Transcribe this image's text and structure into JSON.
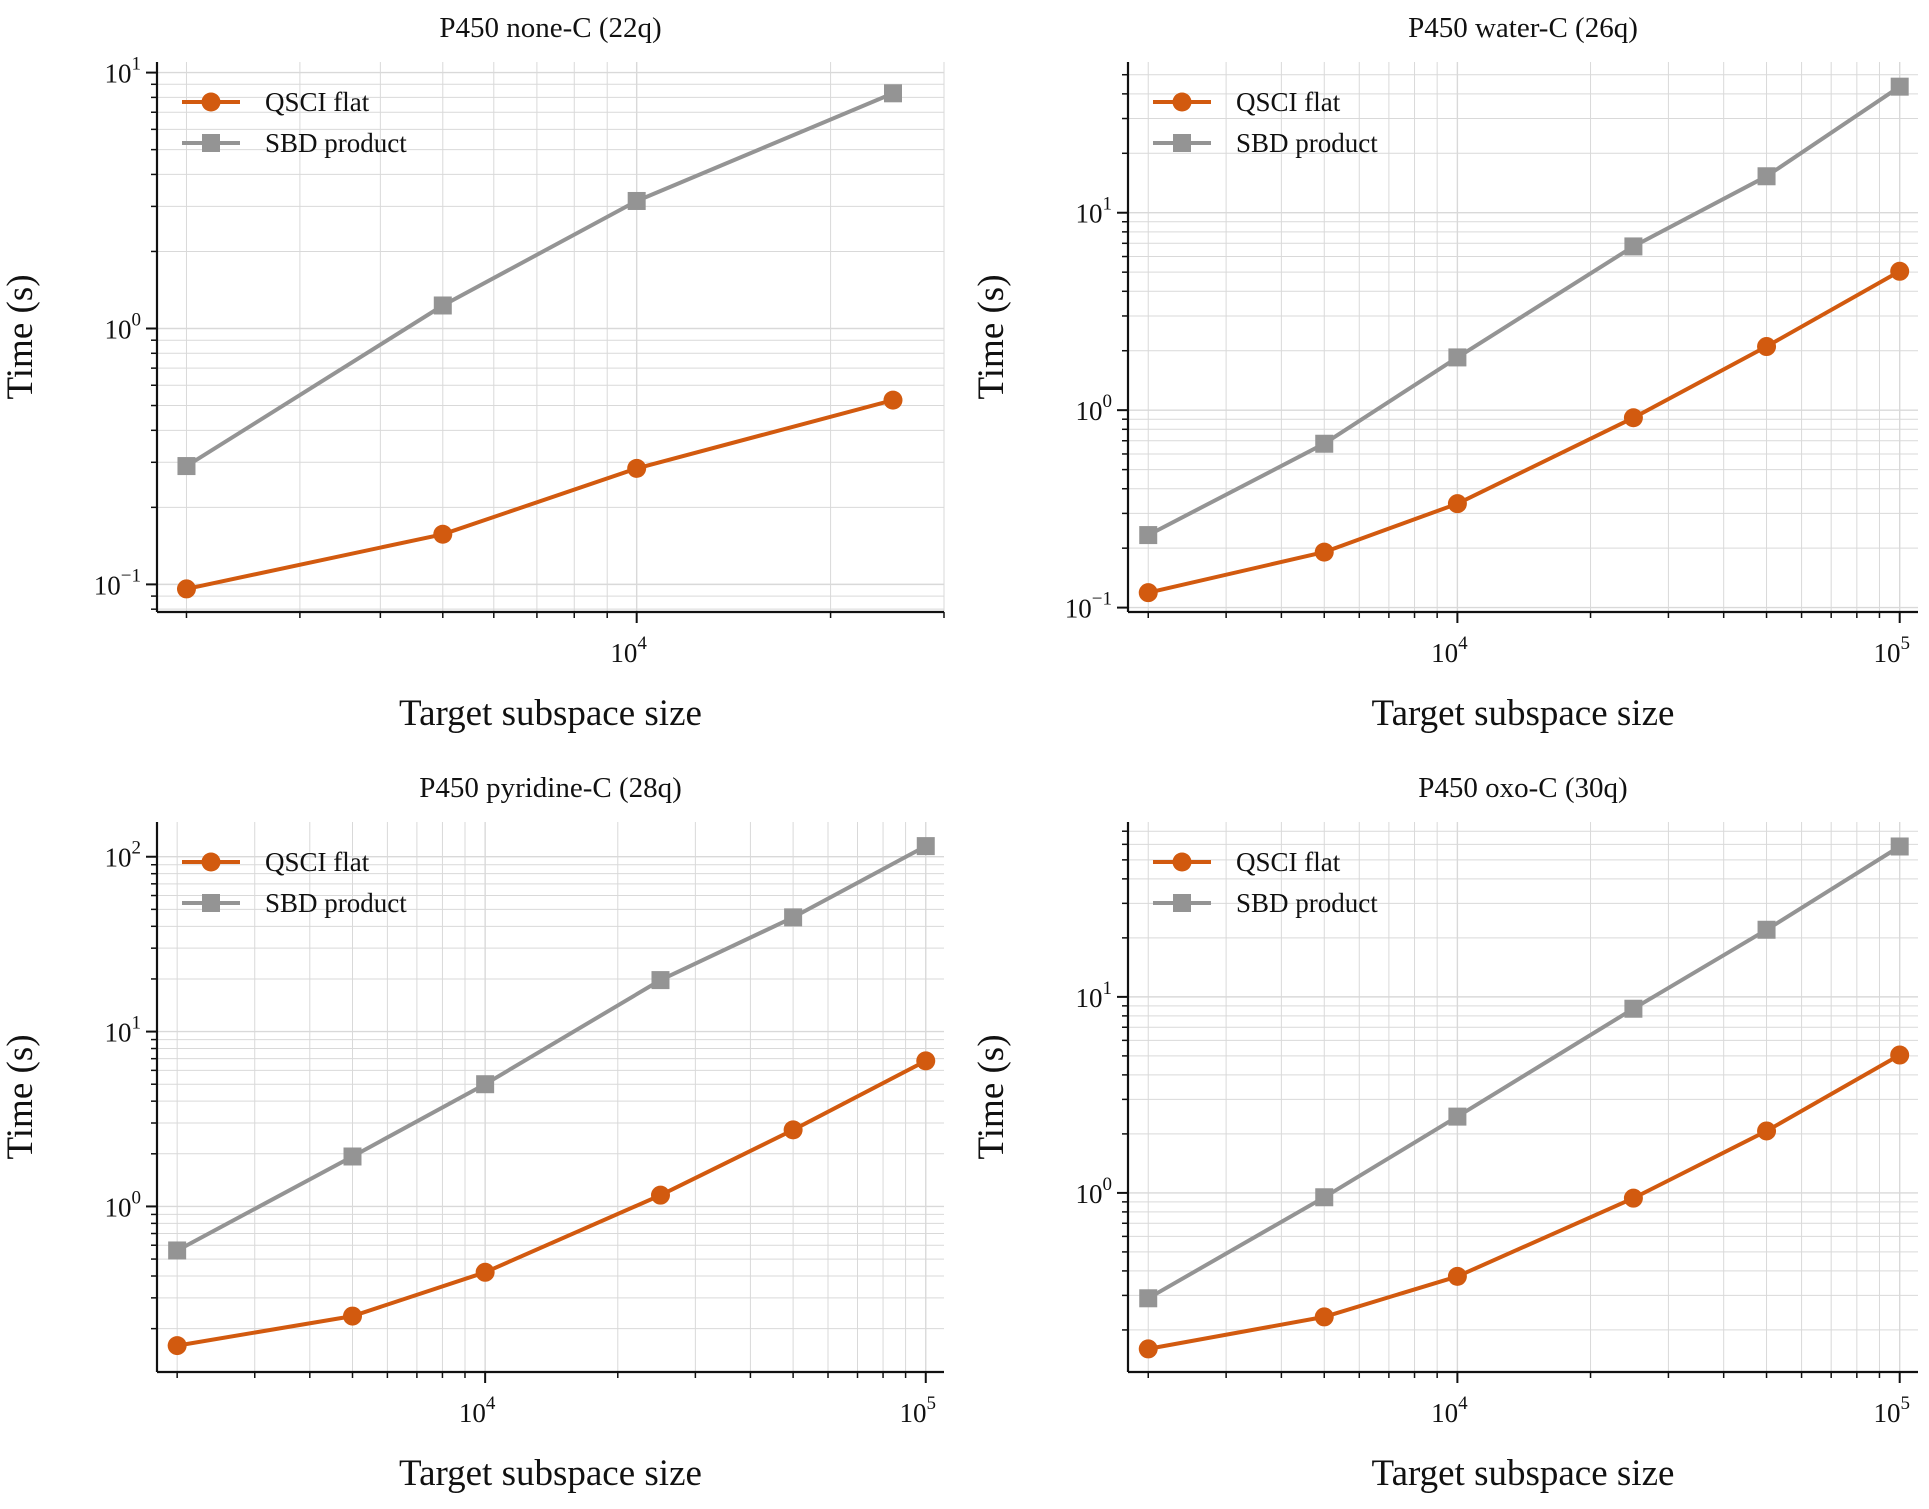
{
  "figure": {
    "colors": {
      "qsci": "#D25A0F",
      "sbd": "#949494",
      "grid": "#D9D9D9",
      "axis": "#111111"
    }
  },
  "chart_data": [
    {
      "type": "line",
      "title": "P450 none-C (22q)",
      "xlabel": "Target subspace size",
      "ylabel": "Time (s)",
      "xscale": "log",
      "yscale": "log",
      "xlim": [
        1800,
        30000
      ],
      "ylim": [
        0.078,
        11
      ],
      "grid": true,
      "legend": "upper-left",
      "xticks": [
        {
          "value": 10000,
          "base": "10",
          "exp": "4"
        }
      ],
      "yticks": [
        {
          "value": 0.1,
          "base": "10",
          "exp": "−1"
        },
        {
          "value": 1,
          "base": "10",
          "exp": "0"
        },
        {
          "value": 10,
          "base": "10",
          "exp": "1"
        }
      ],
      "series": [
        {
          "name": "QSCI flat",
          "marker": "circle",
          "color": "#D25A0F",
          "x": [
            2000,
            5000,
            10000,
            25000
          ],
          "y": [
            0.096,
            0.157,
            0.284,
            0.525
          ]
        },
        {
          "name": "SBD product",
          "marker": "square",
          "color": "#949494",
          "x": [
            2000,
            5000,
            10000,
            25000
          ],
          "y": [
            0.29,
            1.23,
            3.15,
            8.3
          ]
        }
      ]
    },
    {
      "type": "line",
      "title": "P450 water-C (26q)",
      "xlabel": "Target subspace size",
      "ylabel": "Time (s)",
      "xscale": "log",
      "yscale": "log",
      "xlim": [
        1800,
        110000
      ],
      "ylim": [
        0.095,
        58
      ],
      "grid": true,
      "legend": "upper-left",
      "xticks": [
        {
          "value": 10000,
          "base": "10",
          "exp": "4"
        },
        {
          "value": 100000,
          "base": "10",
          "exp": "5"
        }
      ],
      "yticks": [
        {
          "value": 0.1,
          "base": "10",
          "exp": "−1"
        },
        {
          "value": 1,
          "base": "10",
          "exp": "0"
        },
        {
          "value": 10,
          "base": "10",
          "exp": "1"
        }
      ],
      "series": [
        {
          "name": "QSCI flat",
          "marker": "circle",
          "color": "#D25A0F",
          "x": [
            2000,
            5000,
            10000,
            25000,
            50000,
            100000
          ],
          "y": [
            0.119,
            0.191,
            0.336,
            0.915,
            2.1,
            5.05
          ]
        },
        {
          "name": "SBD product",
          "marker": "square",
          "color": "#949494",
          "x": [
            2000,
            5000,
            10000,
            25000,
            50000,
            100000
          ],
          "y": [
            0.233,
            0.676,
            1.85,
            6.75,
            15.3,
            43.5
          ]
        }
      ]
    },
    {
      "type": "line",
      "title": "P450 pyridine-C (28q)",
      "xlabel": "Target subspace size",
      "ylabel": "Time (s)",
      "xscale": "log",
      "yscale": "log",
      "xlim": [
        1800,
        110000
      ],
      "ylim": [
        0.113,
        158
      ],
      "grid": true,
      "legend": "upper-left",
      "xticks": [
        {
          "value": 10000,
          "base": "10",
          "exp": "4"
        },
        {
          "value": 100000,
          "base": "10",
          "exp": "5"
        }
      ],
      "yticks": [
        {
          "value": 1,
          "base": "10",
          "exp": "0"
        },
        {
          "value": 10,
          "base": "10",
          "exp": "1"
        },
        {
          "value": 100,
          "base": "10",
          "exp": "2"
        }
      ],
      "series": [
        {
          "name": "QSCI flat",
          "marker": "circle",
          "color": "#D25A0F",
          "x": [
            2000,
            5000,
            10000,
            25000,
            50000,
            100000
          ],
          "y": [
            0.16,
            0.236,
            0.42,
            1.16,
            2.74,
            6.8
          ]
        },
        {
          "name": "SBD product",
          "marker": "square",
          "color": "#949494",
          "x": [
            2000,
            5000,
            10000,
            25000,
            50000,
            100000
          ],
          "y": [
            0.56,
            1.93,
            5.0,
            19.7,
            45.0,
            115
          ]
        }
      ]
    },
    {
      "type": "line",
      "title": "P450 oxo-C (30q)",
      "xlabel": "Target subspace size",
      "ylabel": "Time (s)",
      "xscale": "log",
      "yscale": "log",
      "xlim": [
        1800,
        110000
      ],
      "ylim": [
        0.122,
        78
      ],
      "grid": true,
      "legend": "upper-left",
      "xticks": [
        {
          "value": 10000,
          "base": "10",
          "exp": "4"
        },
        {
          "value": 100000,
          "base": "10",
          "exp": "5"
        }
      ],
      "yticks": [
        {
          "value": 1,
          "base": "10",
          "exp": "0"
        },
        {
          "value": 10,
          "base": "10",
          "exp": "1"
        }
      ],
      "series": [
        {
          "name": "QSCI flat",
          "marker": "circle",
          "color": "#D25A0F",
          "x": [
            2000,
            5000,
            10000,
            25000,
            50000,
            100000
          ],
          "y": [
            0.16,
            0.233,
            0.375,
            0.94,
            2.07,
            5.05
          ]
        },
        {
          "name": "SBD product",
          "marker": "square",
          "color": "#949494",
          "x": [
            2000,
            5000,
            10000,
            25000,
            50000,
            100000
          ],
          "y": [
            0.29,
            0.95,
            2.45,
            8.7,
            22.0,
            58.5
          ]
        }
      ]
    }
  ]
}
